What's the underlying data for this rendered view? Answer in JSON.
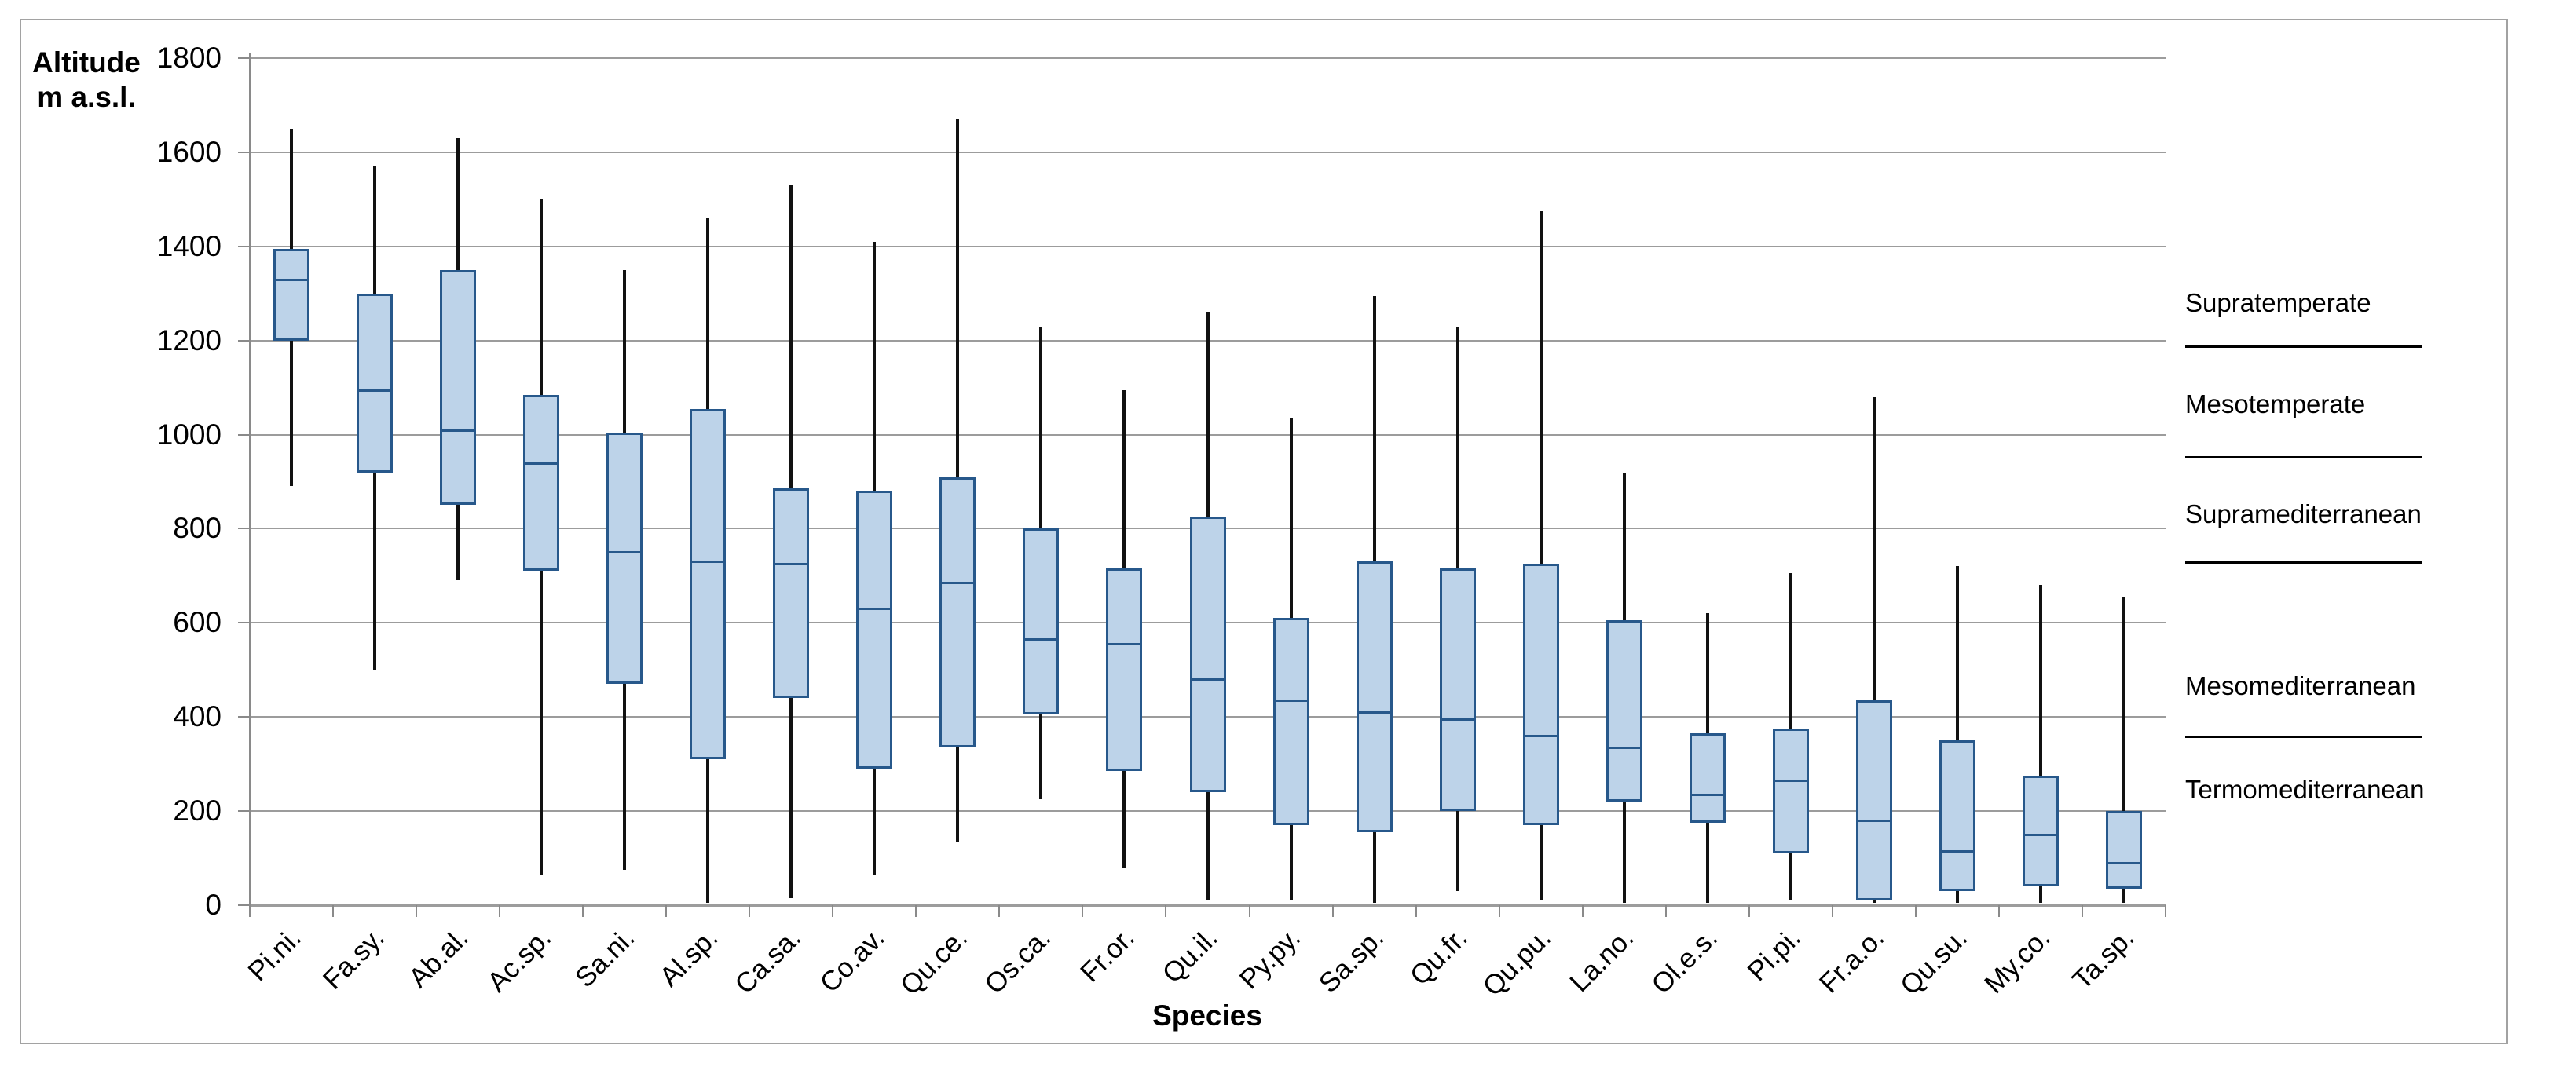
{
  "chart_data": {
    "type": "boxplot",
    "title": "",
    "ylabel_lines": [
      "Altitude",
      "m a.s.l."
    ],
    "xlabel": "Species",
    "ylim": [
      0,
      1800
    ],
    "ytick_step": 200,
    "ytick_labels": [
      "0",
      "200",
      "400",
      "600",
      "800",
      "1000",
      "1200",
      "1400",
      "1600",
      "1800"
    ],
    "grid": "horizontal",
    "legend_position": "none",
    "categories": [
      "Pi.ni.",
      "Fa.sy.",
      "Ab.al.",
      "Ac.sp.",
      "Sa.ni.",
      "Al.sp.",
      "Ca.sa.",
      "Co.av.",
      "Qu.ce.",
      "Os.ca.",
      "Fr.or.",
      "Qu.il.",
      "Py.py.",
      "Sa.sp.",
      "Qu.fr.",
      "Qu.pu.",
      "La.no.",
      "Ol.e.s.",
      "Pi.pi.",
      "Fr.a.o.",
      "Qu.su.",
      "My.co.",
      "Ta.sp."
    ],
    "boxes": [
      {
        "species": "Pi.ni.",
        "min": 890,
        "q1": 1200,
        "median": 1330,
        "q3": 1395,
        "max": 1650
      },
      {
        "species": "Fa.sy.",
        "min": 500,
        "q1": 920,
        "median": 1095,
        "q3": 1300,
        "max": 1570
      },
      {
        "species": "Ab.al.",
        "min": 690,
        "q1": 850,
        "median": 1010,
        "q3": 1350,
        "max": 1630
      },
      {
        "species": "Ac.sp.",
        "min": 65,
        "q1": 710,
        "median": 940,
        "q3": 1085,
        "max": 1500
      },
      {
        "species": "Sa.ni.",
        "min": 75,
        "q1": 470,
        "median": 750,
        "q3": 1005,
        "max": 1350
      },
      {
        "species": "Al.sp.",
        "min": 5,
        "q1": 310,
        "median": 730,
        "q3": 1055,
        "max": 1460
      },
      {
        "species": "Ca.sa.",
        "min": 15,
        "q1": 440,
        "median": 725,
        "q3": 885,
        "max": 1530
      },
      {
        "species": "Co.av.",
        "min": 65,
        "q1": 290,
        "median": 630,
        "q3": 880,
        "max": 1410
      },
      {
        "species": "Qu.ce.",
        "min": 135,
        "q1": 335,
        "median": 685,
        "q3": 910,
        "max": 1670
      },
      {
        "species": "Os.ca.",
        "min": 225,
        "q1": 405,
        "median": 565,
        "q3": 800,
        "max": 1230
      },
      {
        "species": "Fr.or.",
        "min": 80,
        "q1": 285,
        "median": 555,
        "q3": 715,
        "max": 1095
      },
      {
        "species": "Qu.il.",
        "min": 10,
        "q1": 240,
        "median": 480,
        "q3": 825,
        "max": 1260
      },
      {
        "species": "Py.py.",
        "min": 10,
        "q1": 170,
        "median": 435,
        "q3": 610,
        "max": 1035
      },
      {
        "species": "Sa.sp.",
        "min": 5,
        "q1": 155,
        "median": 410,
        "q3": 730,
        "max": 1295
      },
      {
        "species": "Qu.fr.",
        "min": 30,
        "q1": 200,
        "median": 395,
        "q3": 715,
        "max": 1230
      },
      {
        "species": "Qu.pu.",
        "min": 10,
        "q1": 170,
        "median": 360,
        "q3": 725,
        "max": 1475
      },
      {
        "species": "La.no.",
        "min": 5,
        "q1": 220,
        "median": 335,
        "q3": 605,
        "max": 920
      },
      {
        "species": "Ol.e.s.",
        "min": 5,
        "q1": 175,
        "median": 235,
        "q3": 365,
        "max": 620
      },
      {
        "species": "Pi.pi.",
        "min": 10,
        "q1": 110,
        "median": 265,
        "q3": 375,
        "max": 705
      },
      {
        "species": "Fr.a.o.",
        "min": 5,
        "q1": 10,
        "median": 180,
        "q3": 435,
        "max": 1080
      },
      {
        "species": "Qu.su.",
        "min": 5,
        "q1": 30,
        "median": 115,
        "q3": 350,
        "max": 720
      },
      {
        "species": "My.co.",
        "min": 5,
        "q1": 40,
        "median": 150,
        "q3": 275,
        "max": 680
      },
      {
        "species": "Ta.sp.",
        "min": 5,
        "q1": 35,
        "median": 90,
        "q3": 200,
        "max": 655
      }
    ],
    "zones": [
      {
        "label": "Supratemperate",
        "label_alt": 1280,
        "line_alt": 1190
      },
      {
        "label": "Mesotemperate",
        "label_alt": 1065,
        "line_alt": 955
      },
      {
        "label": "Supramediterranean",
        "label_alt": 830,
        "line_alt": 730
      },
      {
        "label": "Mesomediterranean",
        "label_alt": 465,
        "line_alt": 360
      },
      {
        "label": "Termomediterranean",
        "label_alt": 245,
        "line_alt": null
      }
    ],
    "colors": {
      "box_fill": "#bdd3e9",
      "box_border": "#27588b",
      "median": "#27588b",
      "whisker": "#111111",
      "gridline": "#9c9c9c",
      "axis": "#8a8a8a",
      "figure_border": "#a2a2a2",
      "text": "#000000",
      "background": "#ffffff"
    }
  }
}
